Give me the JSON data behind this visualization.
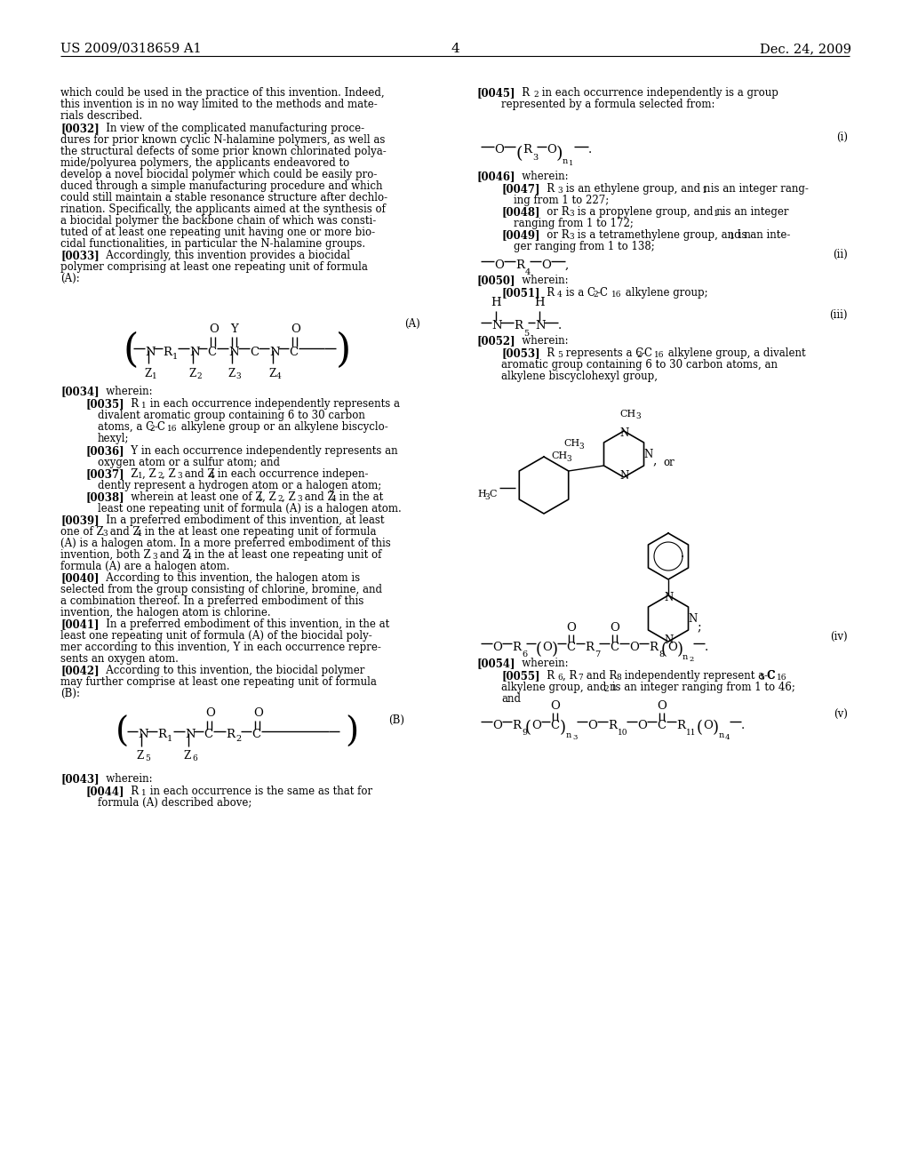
{
  "bg": "#ffffff",
  "fc": "#000000",
  "header_left": "US 2009/0318659 A1",
  "header_right": "Dec. 24, 2009",
  "page_num": "4"
}
